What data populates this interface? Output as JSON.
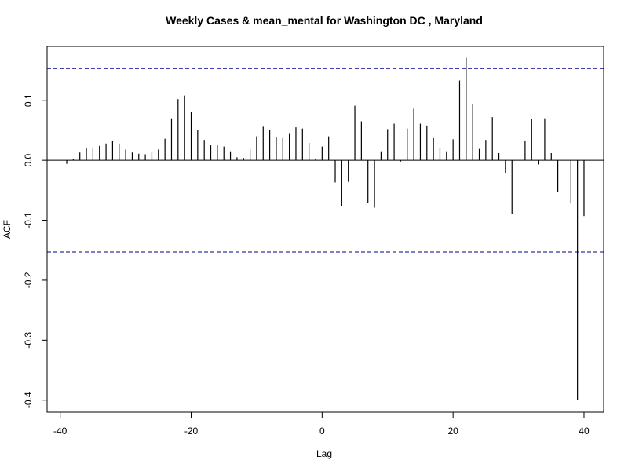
{
  "chart_data": {
    "type": "bar",
    "title": "Weekly Cases & mean_mental for Washington DC , Maryland",
    "xlabel": "Lag",
    "ylabel": "ACF",
    "xlim": [
      -42,
      43
    ],
    "ylim": [
      -0.42,
      0.19
    ],
    "xticks": [
      -40,
      -20,
      0,
      20,
      40
    ],
    "xtick_labels": [
      "-40",
      "-20",
      "0",
      "20",
      "40"
    ],
    "yticks": [
      -0.4,
      -0.3,
      -0.2,
      -0.1,
      0.0,
      0.1
    ],
    "ytick_labels": [
      "-0.4",
      "-0.3",
      "-0.2",
      "-0.1",
      "0.0",
      "0.1"
    ],
    "confidence_limits": [
      0.153,
      -0.153
    ],
    "colors": {
      "bars": "#000000",
      "ci": "#00008b",
      "axes": "#000000"
    },
    "lags": [
      -40,
      -39,
      -38,
      -37,
      -36,
      -35,
      -34,
      -33,
      -32,
      -31,
      -30,
      -29,
      -28,
      -27,
      -26,
      -25,
      -24,
      -23,
      -22,
      -21,
      -20,
      -19,
      -18,
      -17,
      -16,
      -15,
      -14,
      -13,
      -12,
      -11,
      -10,
      -9,
      -8,
      -7,
      -6,
      -5,
      -4,
      -3,
      -2,
      -1,
      0,
      1,
      2,
      3,
      4,
      5,
      6,
      7,
      8,
      9,
      10,
      11,
      12,
      13,
      14,
      15,
      16,
      17,
      18,
      19,
      20,
      21,
      22,
      23,
      24,
      25,
      26,
      27,
      28,
      29,
      30,
      31,
      32,
      33,
      34,
      35,
      36,
      37,
      38,
      39,
      40
    ],
    "values": [
      0.0,
      -0.006,
      0.002,
      0.013,
      0.02,
      0.021,
      0.024,
      0.028,
      0.032,
      0.028,
      0.018,
      0.013,
      0.011,
      0.01,
      0.013,
      0.018,
      0.036,
      0.07,
      0.102,
      0.108,
      0.08,
      0.05,
      0.034,
      0.025,
      0.025,
      0.023,
      0.015,
      0.005,
      0.004,
      0.018,
      0.04,
      0.056,
      0.051,
      0.038,
      0.037,
      0.044,
      0.055,
      0.053,
      0.029,
      0.003,
      0.023,
      0.04,
      -0.037,
      -0.076,
      -0.036,
      0.091,
      0.065,
      -0.071,
      -0.079,
      0.015,
      0.052,
      0.061,
      -0.002,
      0.053,
      0.086,
      0.061,
      0.058,
      0.037,
      0.021,
      0.015,
      0.035,
      0.133,
      0.171,
      0.093,
      0.019,
      0.034,
      0.072,
      0.012,
      -0.022,
      -0.09,
      0.0,
      0.033,
      0.069,
      -0.007,
      0.07,
      0.012,
      -0.053,
      0.0,
      -0.072,
      -0.399,
      -0.093
    ]
  }
}
